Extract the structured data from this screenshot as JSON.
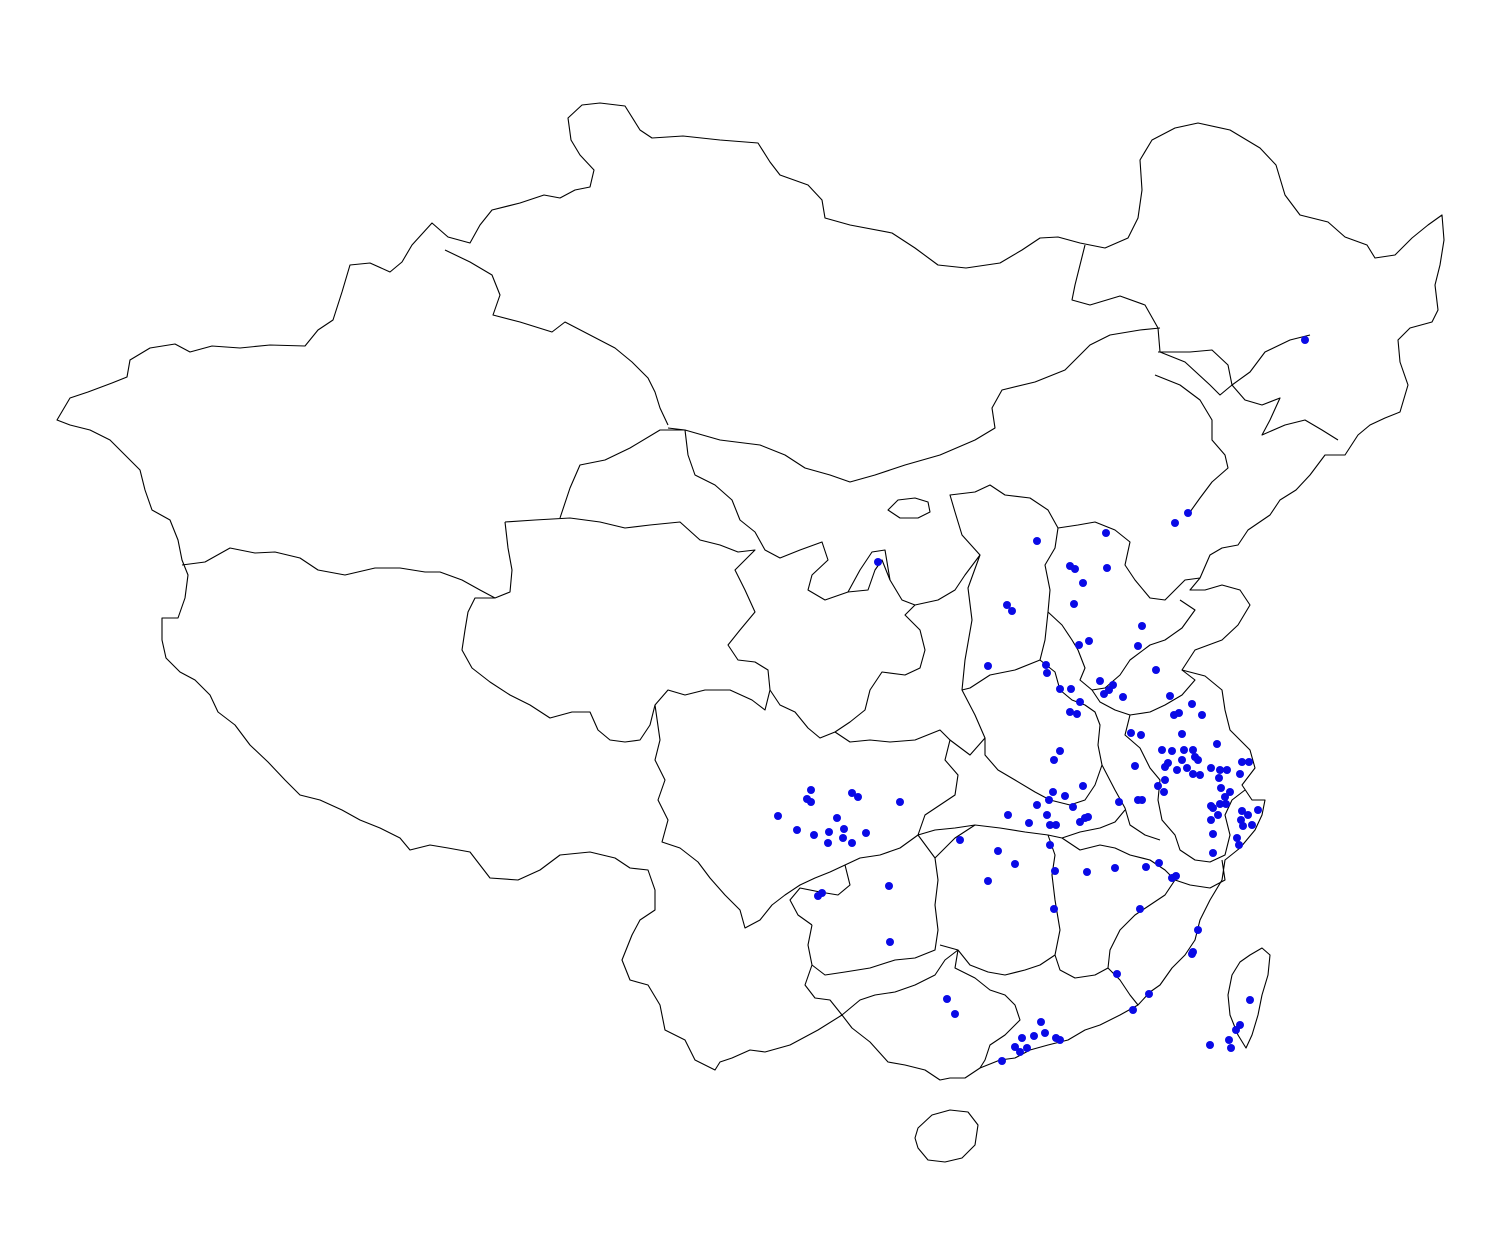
{
  "map": {
    "type": "point-map",
    "region": "China",
    "marker_color": "#0a0ae6",
    "boundary_color": "#000000",
    "background": "#ffffff",
    "legend": "none",
    "title": "",
    "point_count": 163
  }
}
